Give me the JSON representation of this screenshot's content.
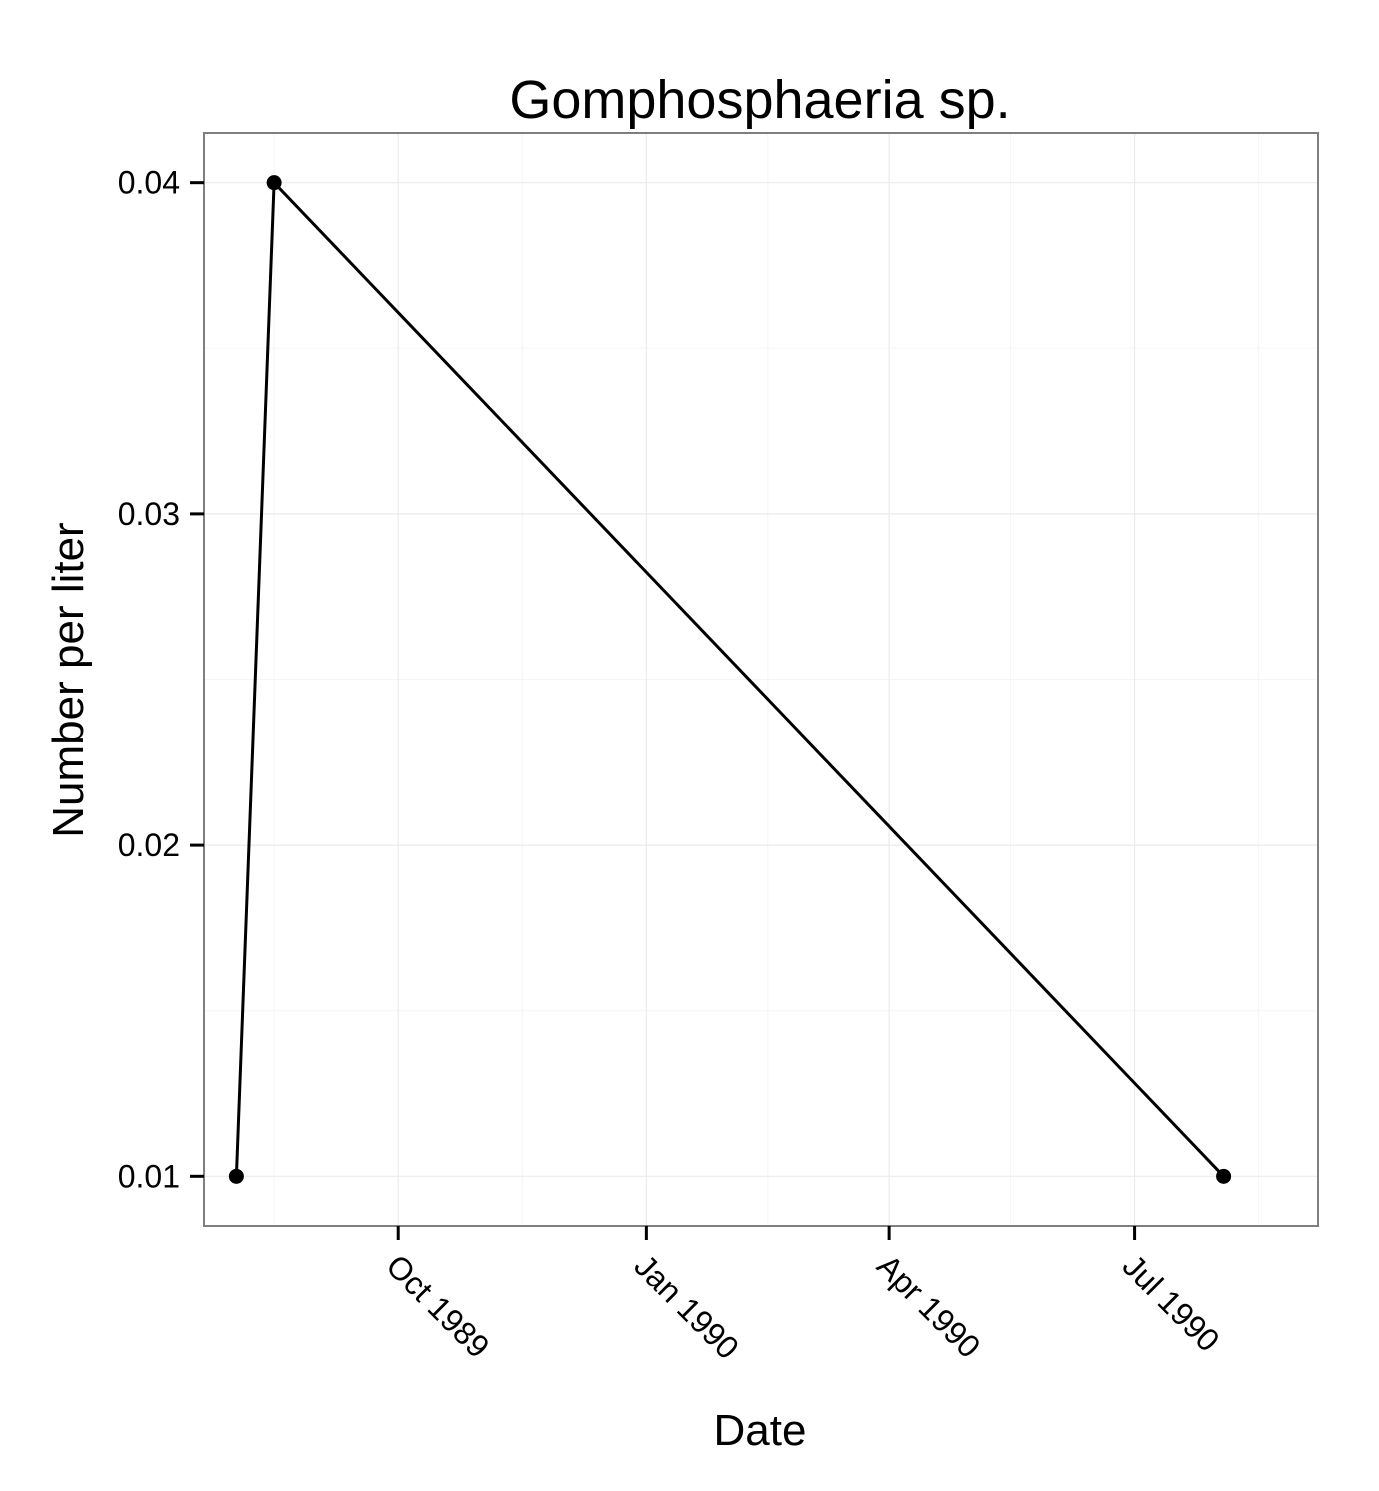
{
  "chart_data": {
    "type": "line",
    "title": "Gomphosphaeria sp.",
    "xlabel": "Date",
    "ylabel": "Number per liter",
    "x_ticks": [
      {
        "date": "1989-10-01",
        "label": "Oct 1989"
      },
      {
        "date": "1990-01-01",
        "label": "Jan 1990"
      },
      {
        "date": "1990-04-01",
        "label": "Apr 1990"
      },
      {
        "date": "1990-07-01",
        "label": "Jul 1990"
      }
    ],
    "y_ticks": [
      {
        "value": 0.01,
        "label": "0.01"
      },
      {
        "value": 0.02,
        "label": "0.02"
      },
      {
        "value": 0.03,
        "label": "0.03"
      },
      {
        "value": 0.04,
        "label": "0.04"
      }
    ],
    "xlim": [
      "1989-07-21",
      "1990-09-07"
    ],
    "ylim": [
      0.0085,
      0.0415
    ],
    "grid": true,
    "series": [
      {
        "color": "#000000",
        "points": [
          {
            "x": "1989-08-02",
            "y": 0.01
          },
          {
            "x": "1989-08-16",
            "y": 0.04
          },
          {
            "x": "1990-08-03",
            "y": 0.01
          }
        ]
      }
    ]
  }
}
